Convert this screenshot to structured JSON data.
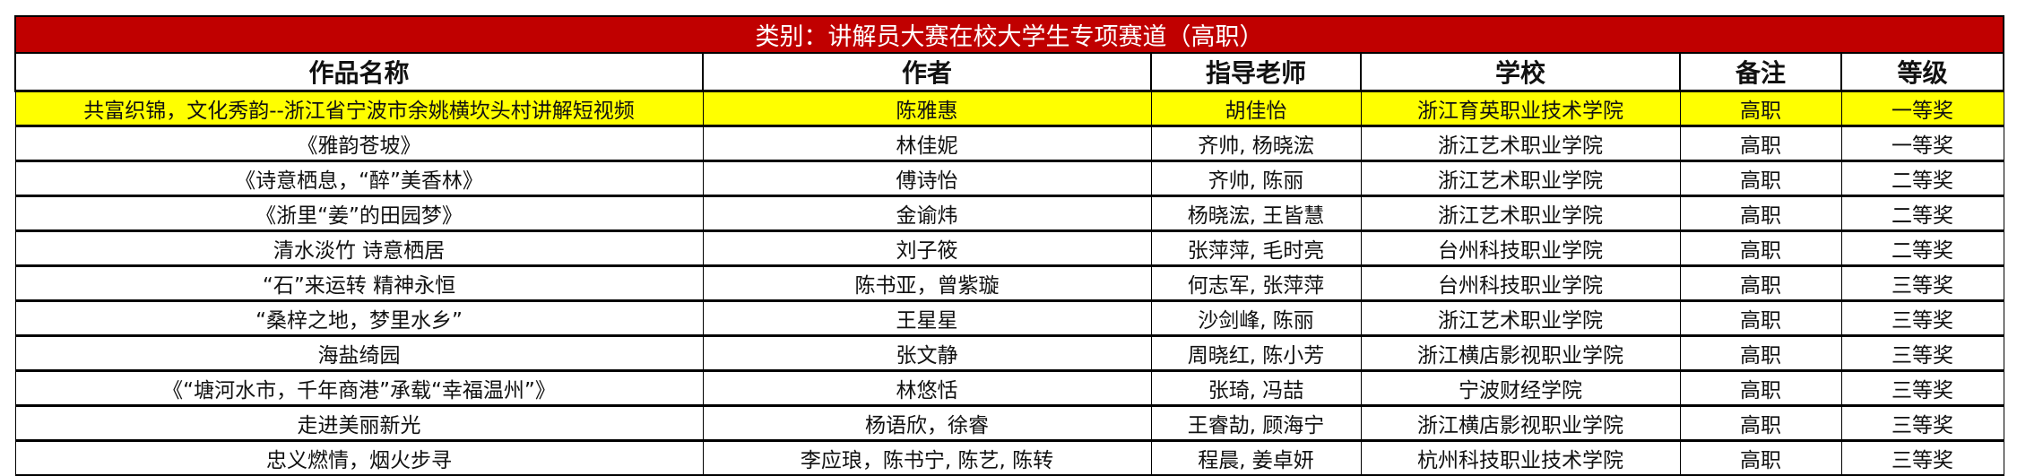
{
  "title": "类别：讲解员大赛在校大学生专项赛道（高职）",
  "headers": [
    "作品名称",
    "作者",
    "指导老师",
    "学校",
    "备注",
    "等级"
  ],
  "highlight_color": "#FFFF00",
  "title_color": "#C00000",
  "rows": [
    [
      "共富织锦，文化秀韵--浙江省宁波市余姚横坎头村讲解短视频",
      "陈雅惠",
      "胡佳怡",
      "浙江育英职业技术学院",
      "高职",
      "一等奖"
    ],
    [
      "《雅韵苍坡》",
      "林佳妮",
      "齐帅, 杨晓浤",
      "浙江艺术职业学院",
      "高职",
      "一等奖"
    ],
    [
      "《诗意栖息，“醉”美香林》",
      "傅诗怡",
      "齐帅, 陈丽",
      "浙江艺术职业学院",
      "高职",
      "二等奖"
    ],
    [
      "《浙里“姜”的田园梦》",
      "金谕炜",
      "杨晓浤, 王皆慧",
      "浙江艺术职业学院",
      "高职",
      "二等奖"
    ],
    [
      "清水淡竹  诗意栖居",
      "刘子筱",
      "张萍萍, 毛时亮",
      "台州科技职业学院",
      "高职",
      "二等奖"
    ],
    [
      "“石”来运转  精神永恒",
      "陈书亚，曾紫璇",
      "何志军, 张萍萍",
      "台州科技职业学院",
      "高职",
      "三等奖"
    ],
    [
      "“桑梓之地，梦里水乡”",
      "王星星",
      "沙剑峰, 陈丽",
      "浙江艺术职业学院",
      "高职",
      "三等奖"
    ],
    [
      "海盐绮园",
      "张文静",
      "周晓红, 陈小芳",
      "浙江横店影视职业学院",
      "高职",
      "三等奖"
    ],
    [
      "《“塘河水市，千年商港”承载“幸福温州”》",
      "林悠恬",
      "张琦, 冯喆",
      "宁波财经学院",
      "高职",
      "三等奖"
    ],
    [
      "走进美丽新光",
      "杨语欣，徐睿",
      "王睿劼, 顾海宁",
      "浙江横店影视职业学院",
      "高职",
      "三等奖"
    ],
    [
      "忠义燃情，烟火步寻",
      "李应琅，陈书宁, 陈艺, 陈转",
      "程晨, 姜卓妍",
      "杭州科技职业技术学院",
      "高职",
      "三等奖"
    ]
  ]
}
